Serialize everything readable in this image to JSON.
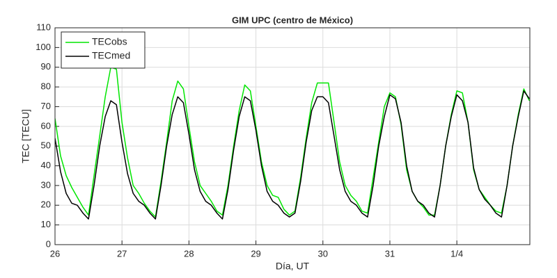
{
  "chart_data": {
    "type": "line",
    "title": "GIM UPC (centro de México)",
    "x_label": "Día, UT",
    "y_label": "TEC [TECU]",
    "x": [
      26,
      26.083,
      26.167,
      26.25,
      26.333,
      26.417,
      26.5,
      26.583,
      26.667,
      26.75,
      26.833,
      26.917,
      27,
      27.083,
      27.167,
      27.25,
      27.333,
      27.417,
      27.5,
      27.583,
      27.667,
      27.75,
      27.833,
      27.917,
      28,
      28.083,
      28.167,
      28.25,
      28.333,
      28.417,
      28.5,
      28.583,
      28.667,
      28.75,
      28.833,
      28.917,
      29,
      29.083,
      29.167,
      29.25,
      29.333,
      29.417,
      29.5,
      29.583,
      29.667,
      29.75,
      29.833,
      29.917,
      30,
      30.083,
      30.167,
      30.25,
      30.333,
      30.417,
      30.5,
      30.583,
      30.667,
      30.75,
      30.833,
      30.917,
      31,
      31.083,
      31.167,
      31.25,
      31.333,
      31.417,
      31.5,
      31.583,
      31.667,
      31.75,
      31.833,
      31.917,
      32,
      32.083,
      32.167,
      32.25,
      32.333,
      32.417,
      32.5,
      32.583,
      32.667,
      32.75,
      32.833,
      32.917,
      33,
      33.083
    ],
    "series": [
      {
        "name": "TECobs",
        "color": "#00e600",
        "values": [
          64,
          45,
          35,
          29,
          24,
          19,
          15,
          35,
          55,
          75,
          90,
          89,
          62,
          44,
          30,
          26,
          21,
          17,
          14,
          32,
          52,
          73,
          83,
          79,
          60,
          42,
          30,
          26,
          22,
          17,
          15,
          30,
          50,
          68,
          81,
          78,
          60,
          42,
          30,
          25,
          24,
          18,
          15,
          17,
          34,
          54,
          72,
          82,
          82,
          82,
          62,
          42,
          30,
          25,
          22,
          17,
          16,
          34,
          52,
          70,
          77,
          75,
          61,
          38,
          27,
          22,
          19,
          15,
          15,
          30,
          50,
          66,
          78,
          77,
          62,
          38,
          28,
          24,
          20,
          17,
          16,
          30,
          50,
          66,
          79,
          73
        ]
      },
      {
        "name": "TECmed",
        "color": "#000000",
        "values": [
          54,
          37,
          26,
          21,
          20,
          16,
          13,
          30,
          50,
          65,
          73,
          71,
          52,
          36,
          26,
          22,
          20,
          16,
          13,
          30,
          50,
          66,
          75,
          72,
          56,
          38,
          27,
          22,
          20,
          16,
          13,
          28,
          48,
          65,
          75,
          73,
          58,
          40,
          27,
          22,
          20,
          16,
          14,
          16,
          32,
          52,
          68,
          75,
          75,
          72,
          55,
          38,
          27,
          22,
          20,
          16,
          14,
          30,
          50,
          65,
          76,
          74,
          62,
          40,
          27,
          22,
          20,
          16,
          14,
          30,
          50,
          65,
          76,
          73,
          62,
          39,
          28,
          23,
          20,
          16,
          14,
          30,
          50,
          65,
          78,
          74
        ]
      }
    ],
    "xlim": [
      26,
      33.09
    ],
    "xticks": [
      26,
      27,
      28,
      29,
      30,
      31,
      {
        "value": 32,
        "label": "1/4"
      }
    ],
    "ylim": [
      0,
      110
    ],
    "yticks": [
      0,
      10,
      20,
      30,
      40,
      50,
      60,
      70,
      80,
      90,
      100,
      110
    ],
    "grid": true,
    "legend": "top-left"
  }
}
